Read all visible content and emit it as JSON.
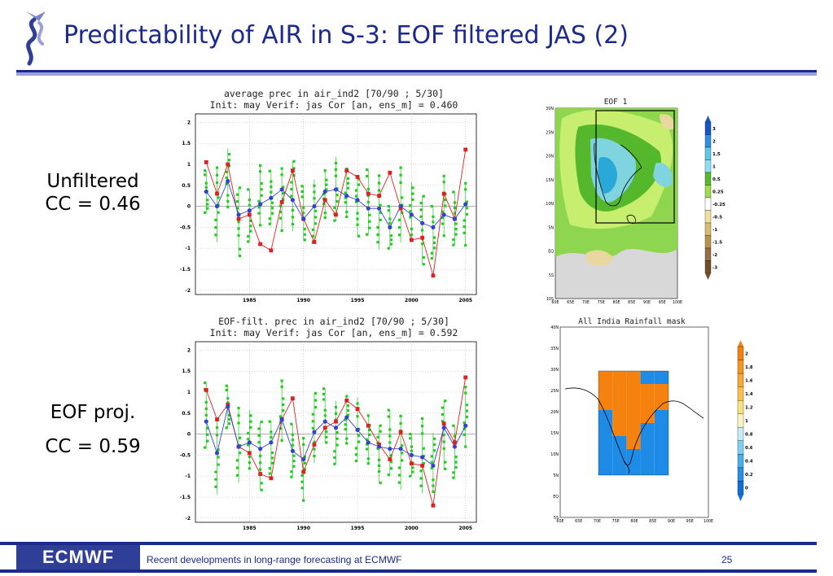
{
  "slide": {
    "title": "Predictability of AIR in S-3: EOF filtered JAS (2)",
    "label_unfiltered": "Unfiltered",
    "label_cc1": "CC = 0.46",
    "label_eof": "EOF proj.",
    "label_cc2": "CC = 0.59"
  },
  "footer": {
    "logo_text": "ECMWF",
    "text": "Recent developments in long-range forecasting at ECMWF",
    "page": "25"
  },
  "colors": {
    "title": "#1c2a8c",
    "observed": "#e02020",
    "ensemble_mean": "#3344cc",
    "members": "#22cc22",
    "mask_orange": "#f5820f",
    "mask_blue": "#1e8ce6"
  },
  "chart_data": [
    {
      "type": "line",
      "title": "average prec in air_ind2 [70/90 ; 5/30]",
      "subtitle": "Init: may   Verif: jas   Cor [an, ens_m] = 0.460",
      "xlabel": "",
      "ylabel": "",
      "ylim": [
        -2.1,
        2.2
      ],
      "xlim": [
        1980,
        2006
      ],
      "x_ticks": [
        "1985",
        "1990",
        "1995",
        "2000",
        "2005"
      ],
      "y_ticks": [
        "2",
        "1.5",
        "1",
        "0.5",
        "0",
        "-0.5",
        "-1",
        "-1.5",
        "-2"
      ],
      "x": [
        1981,
        1982,
        1983,
        1984,
        1985,
        1986,
        1987,
        1988,
        1989,
        1990,
        1991,
        1992,
        1993,
        1994,
        1995,
        1996,
        1997,
        1998,
        1999,
        2000,
        2001,
        2002,
        2003,
        2004,
        2005
      ],
      "series": [
        {
          "values": [
            1.05,
            0.3,
            1.0,
            -0.3,
            -0.2,
            -0.9,
            -1.05,
            0.1,
            0.85,
            -0.3,
            -0.85,
            0.15,
            -0.2,
            0.85,
            0.7,
            0.3,
            0.25,
            0.8,
            -0.05,
            -0.8,
            -0.75,
            -1.65,
            0.3,
            -0.3,
            1.35
          ]
        },
        {
          "values": [
            0.35,
            0.0,
            0.6,
            -0.2,
            -0.1,
            0.05,
            0.2,
            0.4,
            0.15,
            -0.3,
            0.0,
            0.35,
            0.4,
            0.25,
            0.15,
            -0.05,
            -0.05,
            -0.5,
            0.0,
            -0.2,
            -0.4,
            -0.5,
            -0.2,
            -0.3,
            0.05
          ]
        }
      ]
    },
    {
      "type": "line",
      "title": "EOF-filt. prec in air_ind2 [70/90 ; 5/30]",
      "subtitle": "Init: may   Verif: jas   Cor [an, ens_m] = 0.592",
      "xlabel": "",
      "ylabel": "",
      "ylim": [
        -2.1,
        2.2
      ],
      "xlim": [
        1980,
        2006
      ],
      "x_ticks": [
        "1985",
        "1990",
        "1995",
        "2000",
        "2005"
      ],
      "y_ticks": [
        "2",
        "1.5",
        "1",
        "0.5",
        "0",
        "-0.5",
        "-1",
        "-1.5",
        "-2"
      ],
      "x": [
        1981,
        1982,
        1983,
        1984,
        1985,
        1986,
        1987,
        1988,
        1989,
        1990,
        1991,
        1992,
        1993,
        1994,
        1995,
        1996,
        1997,
        1998,
        1999,
        2000,
        2001,
        2002,
        2003,
        2004,
        2005
      ],
      "series": [
        {
          "values": [
            1.05,
            0.35,
            0.7,
            -0.3,
            -0.45,
            -0.95,
            -1.05,
            0.35,
            0.85,
            -0.9,
            -0.25,
            0.15,
            0.3,
            0.8,
            0.6,
            0.2,
            -0.25,
            -0.6,
            0.05,
            -0.7,
            -0.75,
            -1.7,
            0.25,
            -0.2,
            1.35
          ]
        },
        {
          "values": [
            0.3,
            -0.45,
            0.65,
            -0.3,
            -0.2,
            -0.35,
            -0.2,
            0.35,
            -0.4,
            -0.6,
            0.05,
            0.3,
            0.15,
            0.4,
            0.1,
            -0.2,
            -0.3,
            -0.35,
            -0.35,
            -0.5,
            -0.55,
            -0.75,
            0.15,
            -0.3,
            0.2
          ]
        }
      ]
    }
  ],
  "maps": [
    {
      "title": "EOF 1",
      "y_ticks": [
        "30N",
        "25N",
        "20N",
        "15N",
        "10N",
        "5N",
        "EQ",
        "5S",
        "10S"
      ],
      "x_ticks": [
        "60E",
        "65E",
        "70E",
        "75E",
        "80E",
        "85E",
        "90E",
        "95E",
        "100E"
      ],
      "colorbar": [
        "3",
        "2",
        "1.5",
        "1",
        "0.5",
        "0.25",
        "-0.25",
        "-0.5",
        "-1",
        "-1.5",
        "-2",
        "-3"
      ]
    },
    {
      "title": "All India Rainfall mask",
      "y_ticks": [
        "40N",
        "35N",
        "30N",
        "25N",
        "20N",
        "15N",
        "10N",
        "5N",
        "EQ",
        "5S"
      ],
      "x_ticks": [
        "60E",
        "65E",
        "70E",
        "75E",
        "80E",
        "85E",
        "90E",
        "95E",
        "100E"
      ],
      "colorbar": [
        "2",
        "1.8",
        "1.6",
        "1.4",
        "1.2",
        "1",
        "0.8",
        "0.6",
        "0.4",
        "0.2",
        "0"
      ]
    }
  ]
}
